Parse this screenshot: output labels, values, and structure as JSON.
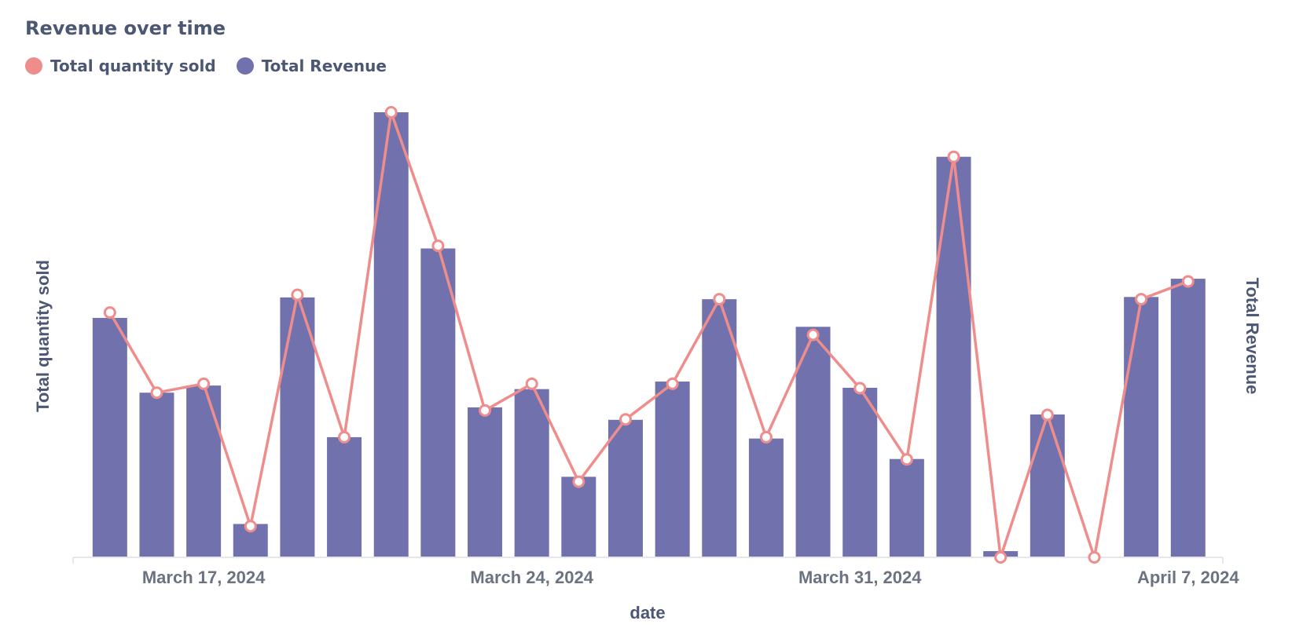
{
  "chart_data": {
    "type": "bar+line",
    "title": "Revenue over time",
    "xlabel": "date",
    "ylabel_left": "Total quantity sold",
    "ylabel_right": "Total Revenue",
    "x_tick_labels": [
      "March 17, 2024",
      "March 24, 2024",
      "March 31, 2024",
      "April 7, 2024"
    ],
    "x_tick_dates": [
      "2024-03-17",
      "2024-03-24",
      "2024-03-31",
      "2024-04-07"
    ],
    "dates": [
      "2024-03-15",
      "2024-03-16",
      "2024-03-17",
      "2024-03-18",
      "2024-03-19",
      "2024-03-20",
      "2024-03-21",
      "2024-03-22",
      "2024-03-23",
      "2024-03-24",
      "2024-03-25",
      "2024-03-26",
      "2024-03-27",
      "2024-03-28",
      "2024-03-29",
      "2024-03-30",
      "2024-03-31",
      "2024-04-01",
      "2024-04-02",
      "2024-04-03",
      "2024-04-04",
      "2024-04-05",
      "2024-04-06",
      "2024-04-07"
    ],
    "series": [
      {
        "name": "Total Revenue",
        "type": "bar",
        "color": "#7172ad",
        "values": [
          538,
          370,
          386,
          75,
          584,
          270,
          1000,
          694,
          337,
          378,
          181,
          309,
          395,
          580,
          267,
          518,
          381,
          221,
          900,
          14,
          321,
          0,
          585,
          626
        ]
      },
      {
        "name": "Total quantity sold",
        "type": "line",
        "color": "#ef8c8c",
        "values": [
          55,
          37,
          39,
          7,
          59,
          27,
          100,
          70,
          33,
          39,
          17,
          31,
          39,
          58,
          27,
          50,
          38,
          22,
          90,
          0,
          32,
          0,
          58,
          62
        ]
      }
    ],
    "ylim_left": [
      0,
      100
    ],
    "ylim_right": [
      0,
      1000
    ],
    "grid": false,
    "legend_position": "top-left"
  }
}
